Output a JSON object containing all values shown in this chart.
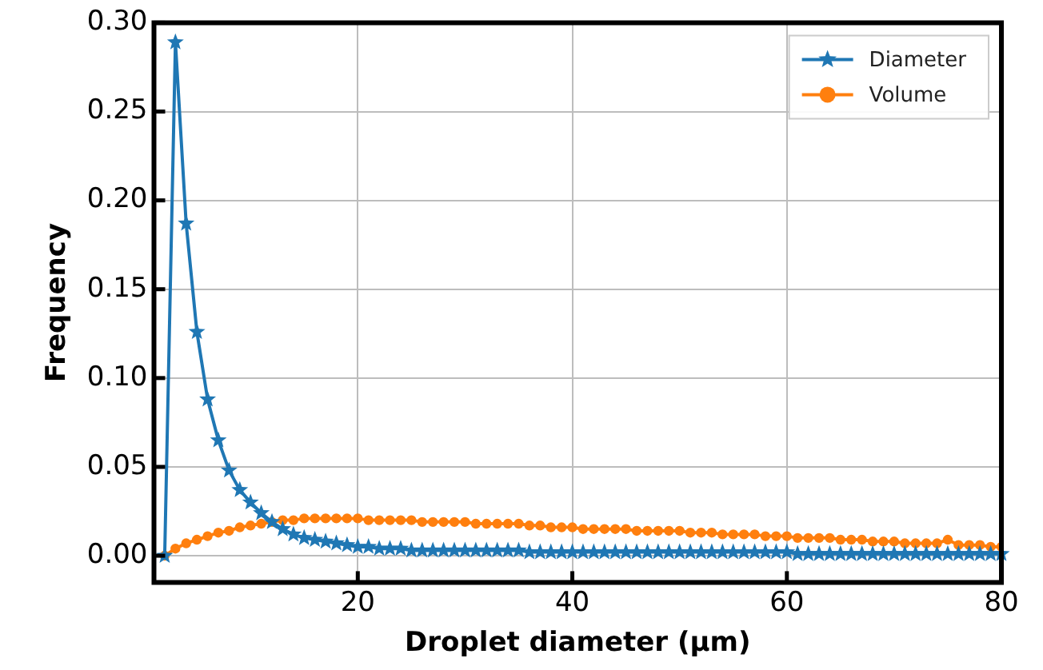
{
  "chart_data": {
    "type": "line",
    "xlabel": "Droplet diameter (μm)",
    "ylabel": "Frequency",
    "x": [
      2,
      3,
      4,
      5,
      6,
      7,
      8,
      9,
      10,
      11,
      12,
      13,
      14,
      15,
      16,
      17,
      18,
      19,
      20,
      21,
      22,
      23,
      24,
      25,
      26,
      27,
      28,
      29,
      30,
      31,
      32,
      33,
      34,
      35,
      36,
      37,
      38,
      39,
      40,
      41,
      42,
      43,
      44,
      45,
      46,
      47,
      48,
      49,
      50,
      51,
      52,
      53,
      54,
      55,
      56,
      57,
      58,
      59,
      60,
      61,
      62,
      63,
      64,
      65,
      66,
      67,
      68,
      69,
      70,
      71,
      72,
      73,
      74,
      75,
      76,
      77,
      78,
      79,
      80
    ],
    "series": [
      {
        "name": "Diameter",
        "color": "#1f77b4",
        "marker": "star",
        "values": [
          0,
          0.289,
          0.187,
          0.126,
          0.088,
          0.065,
          0.048,
          0.037,
          0.03,
          0.024,
          0.019,
          0.015,
          0.012,
          0.01,
          0.009,
          0.008,
          0.007,
          0.006,
          0.005,
          0.005,
          0.004,
          0.004,
          0.004,
          0.003,
          0.003,
          0.003,
          0.003,
          0.003,
          0.003,
          0.003,
          0.003,
          0.003,
          0.003,
          0.003,
          0.002,
          0.002,
          0.002,
          0.002,
          0.002,
          0.002,
          0.002,
          0.002,
          0.002,
          0.002,
          0.002,
          0.002,
          0.002,
          0.002,
          0.002,
          0.002,
          0.002,
          0.002,
          0.002,
          0.002,
          0.002,
          0.002,
          0.002,
          0.002,
          0.002,
          0.001,
          0.001,
          0.001,
          0.001,
          0.001,
          0.001,
          0.001,
          0.001,
          0.001,
          0.001,
          0.001,
          0.001,
          0.001,
          0.001,
          0.001,
          0.001,
          0.001,
          0.001,
          0.001,
          0.001
        ]
      },
      {
        "name": "Volume",
        "color": "#ff7f0e",
        "marker": "circle",
        "values": [
          0,
          0.004,
          0.007,
          0.009,
          0.011,
          0.013,
          0.014,
          0.016,
          0.017,
          0.018,
          0.019,
          0.02,
          0.02,
          0.021,
          0.021,
          0.021,
          0.021,
          0.021,
          0.021,
          0.02,
          0.02,
          0.02,
          0.02,
          0.02,
          0.019,
          0.019,
          0.019,
          0.019,
          0.019,
          0.018,
          0.018,
          0.018,
          0.018,
          0.018,
          0.017,
          0.017,
          0.016,
          0.016,
          0.016,
          0.015,
          0.015,
          0.015,
          0.015,
          0.015,
          0.014,
          0.014,
          0.014,
          0.014,
          0.014,
          0.013,
          0.013,
          0.013,
          0.012,
          0.012,
          0.012,
          0.012,
          0.011,
          0.011,
          0.011,
          0.01,
          0.01,
          0.01,
          0.01,
          0.009,
          0.009,
          0.009,
          0.008,
          0.008,
          0.008,
          0.007,
          0.007,
          0.007,
          0.007,
          0.009,
          0.006,
          0.006,
          0.006,
          0.005,
          0.005
        ]
      }
    ],
    "xlim": [
      1,
      80
    ],
    "xticks": [
      20,
      40,
      60,
      80
    ],
    "ylim": [
      -0.015,
      0.3
    ],
    "yticks": [
      {
        "value": 0,
        "label": "0.00"
      },
      {
        "value": 0.05,
        "label": "0.05"
      },
      {
        "value": 0.1,
        "label": "0.10"
      },
      {
        "value": 0.15,
        "label": "0.15"
      },
      {
        "value": 0.2,
        "label": "0.20"
      },
      {
        "value": 0.25,
        "label": "0.25"
      },
      {
        "value": 0.3,
        "label": "0.30"
      }
    ],
    "grid": true,
    "legend": "top right",
    "line_style": "solid"
  }
}
